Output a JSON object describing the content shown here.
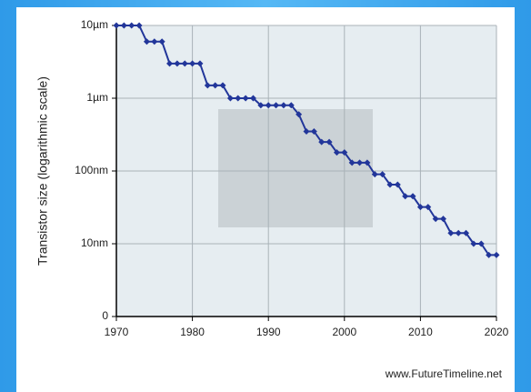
{
  "chart_data": {
    "type": "line",
    "ylabel": "Transistor size (logarithmic scale)",
    "source": "www.FutureTimeline.net",
    "x": [
      1970,
      1971,
      1972,
      1973,
      1974,
      1975,
      1976,
      1977,
      1978,
      1979,
      1980,
      1981,
      1982,
      1983,
      1984,
      1985,
      1986,
      1987,
      1988,
      1989,
      1990,
      1991,
      1992,
      1993,
      1994,
      1995,
      1996,
      1997,
      1998,
      1999,
      2000,
      2001,
      2002,
      2003,
      2004,
      2005,
      2006,
      2007,
      2008,
      2009,
      2010,
      2011,
      2012,
      2013,
      2014,
      2015,
      2016,
      2017,
      2018,
      2019,
      2020
    ],
    "series": [
      {
        "name": "Transistor size",
        "color": "#22369a",
        "values": [
          10000,
          10000,
          10000,
          10000,
          6000,
          6000,
          6000,
          3000,
          3000,
          3000,
          3000,
          3000,
          1500,
          1500,
          1500,
          1000,
          1000,
          1000,
          1000,
          800,
          800,
          800,
          800,
          800,
          600,
          350,
          350,
          250,
          250,
          180,
          180,
          130,
          130,
          130,
          90,
          90,
          65,
          65,
          45,
          45,
          32,
          32,
          22,
          22,
          14,
          14,
          14,
          10,
          10,
          7,
          7
        ]
      }
    ],
    "xlim": [
      1970,
      2020
    ],
    "xticks": [
      1970,
      1980,
      1990,
      2000,
      2010,
      2020
    ],
    "ylim": [
      1,
      10000
    ],
    "log_y": true,
    "yticks": [
      {
        "value": 1,
        "label": "0"
      },
      {
        "value": 10,
        "label": "10nm"
      },
      {
        "value": 100,
        "label": "100nm"
      },
      {
        "value": 1000,
        "label": "1µm"
      },
      {
        "value": 10000,
        "label": "10µm"
      }
    ],
    "grid": true
  }
}
